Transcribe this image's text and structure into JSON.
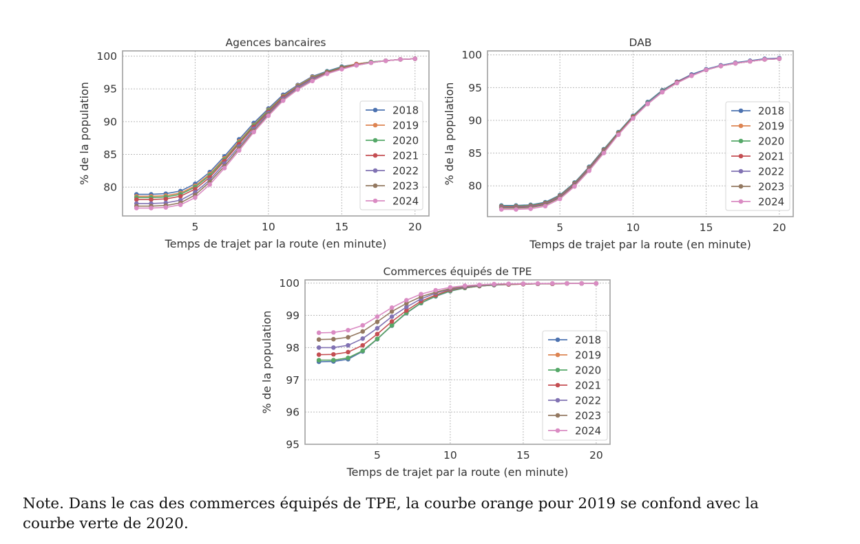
{
  "colors": {
    "2018": "#4C72B0",
    "2019": "#DD8452",
    "2020": "#55A868",
    "2021": "#C44E52",
    "2022": "#8172B3",
    "2023": "#937860",
    "2024": "#DA8BC3",
    "grid": "#b8b8b8",
    "frame": "#a0a0a0"
  },
  "chart_data": [
    {
      "type": "line",
      "title": "Agences bancaires",
      "xlabel": "Temps de trajet par la route (en minute)",
      "ylabel": "% de la population",
      "xlim": [
        0.05,
        20.95
      ],
      "ylim": [
        75.6,
        100.8
      ],
      "xticks": [
        5,
        10,
        15,
        20
      ],
      "yticks": [
        80,
        85,
        90,
        95,
        100
      ],
      "xtick_labels": [
        "5",
        "10",
        "15",
        "20"
      ],
      "ytick_labels": [
        "80",
        "85",
        "90",
        "95",
        "100"
      ],
      "grid": true,
      "legend_position": "center-right",
      "x": [
        1,
        2,
        3,
        4,
        5,
        6,
        7,
        8,
        9,
        10,
        11,
        12,
        13,
        14,
        15,
        16,
        17,
        18,
        19,
        20
      ],
      "series": [
        {
          "name": "2018",
          "values": [
            78.9,
            78.9,
            79.0,
            79.4,
            80.5,
            82.3,
            84.7,
            87.3,
            89.8,
            92.0,
            94.1,
            95.6,
            96.9,
            97.7,
            98.4,
            98.8,
            99.1,
            99.3,
            99.5,
            99.6
          ]
        },
        {
          "name": "2019",
          "values": [
            78.6,
            78.6,
            78.7,
            79.1,
            80.2,
            82.0,
            84.4,
            87.0,
            89.5,
            91.8,
            93.9,
            95.5,
            96.8,
            97.6,
            98.3,
            98.8,
            99.1,
            99.3,
            99.5,
            99.6
          ]
        },
        {
          "name": "2020",
          "values": [
            78.4,
            78.4,
            78.5,
            78.9,
            80.0,
            81.8,
            84.2,
            86.8,
            89.4,
            91.7,
            93.8,
            95.4,
            96.7,
            97.6,
            98.3,
            98.7,
            99.1,
            99.3,
            99.5,
            99.6
          ]
        },
        {
          "name": "2021",
          "values": [
            78.1,
            78.1,
            78.2,
            78.6,
            79.7,
            81.5,
            84.0,
            86.6,
            89.2,
            91.5,
            93.7,
            95.3,
            96.6,
            97.5,
            98.2,
            98.7,
            99.0,
            99.3,
            99.5,
            99.6
          ]
        },
        {
          "name": "2022",
          "values": [
            77.5,
            77.5,
            77.6,
            78.0,
            79.2,
            81.1,
            83.6,
            86.2,
            88.9,
            91.3,
            93.5,
            95.2,
            96.5,
            97.4,
            98.1,
            98.6,
            99.0,
            99.3,
            99.5,
            99.6
          ]
        },
        {
          "name": "2023",
          "values": [
            77.1,
            77.1,
            77.2,
            77.6,
            78.8,
            80.8,
            83.2,
            85.9,
            88.6,
            91.1,
            93.3,
            95.0,
            96.3,
            97.4,
            98.1,
            98.6,
            99.0,
            99.3,
            99.5,
            99.6
          ]
        },
        {
          "name": "2024",
          "values": [
            76.8,
            76.8,
            76.9,
            77.3,
            78.4,
            80.4,
            82.9,
            85.6,
            88.4,
            90.9,
            93.2,
            94.9,
            96.2,
            97.3,
            98.0,
            98.6,
            99.0,
            99.3,
            99.5,
            99.6
          ]
        }
      ]
    },
    {
      "type": "line",
      "title": "DAB",
      "xlabel": "Temps de trajet par la route (en minute)",
      "ylabel": "% de la population",
      "xlim": [
        0.05,
        20.95
      ],
      "ylim": [
        75.3,
        100.6
      ],
      "xticks": [
        5,
        10,
        15,
        20
      ],
      "yticks": [
        80,
        85,
        90,
        95,
        100
      ],
      "xtick_labels": [
        "5",
        "10",
        "15",
        "20"
      ],
      "ytick_labels": [
        "80",
        "85",
        "90",
        "95",
        "100"
      ],
      "grid": true,
      "legend_position": "center-right",
      "x": [
        1,
        2,
        3,
        4,
        5,
        6,
        7,
        8,
        9,
        10,
        11,
        12,
        13,
        14,
        15,
        16,
        17,
        18,
        19,
        20
      ],
      "series": [
        {
          "name": "2018",
          "values": [
            77.0,
            77.0,
            77.1,
            77.5,
            78.6,
            80.5,
            82.9,
            85.6,
            88.2,
            90.7,
            92.8,
            94.6,
            95.9,
            97.0,
            97.8,
            98.4,
            98.8,
            99.1,
            99.4,
            99.5
          ]
        },
        {
          "name": "2019",
          "values": [
            76.9,
            76.9,
            77.0,
            77.4,
            78.5,
            80.4,
            82.8,
            85.5,
            88.1,
            90.6,
            92.7,
            94.5,
            95.8,
            96.9,
            97.7,
            98.3,
            98.7,
            99.0,
            99.3,
            99.4
          ]
        },
        {
          "name": "2020",
          "values": [
            76.9,
            76.9,
            77.0,
            77.4,
            78.5,
            80.4,
            82.8,
            85.5,
            88.1,
            90.6,
            92.7,
            94.5,
            95.8,
            96.9,
            97.7,
            98.3,
            98.7,
            99.0,
            99.3,
            99.4
          ]
        },
        {
          "name": "2021",
          "values": [
            76.8,
            76.8,
            76.9,
            77.3,
            78.4,
            80.3,
            82.7,
            85.4,
            88.0,
            90.5,
            92.6,
            94.4,
            95.8,
            96.9,
            97.7,
            98.3,
            98.7,
            99.0,
            99.3,
            99.4
          ]
        },
        {
          "name": "2022",
          "values": [
            76.7,
            76.7,
            76.8,
            77.2,
            78.3,
            80.2,
            82.6,
            85.3,
            87.9,
            90.4,
            92.6,
            94.4,
            95.7,
            96.9,
            97.7,
            98.3,
            98.7,
            99.0,
            99.3,
            99.4
          ]
        },
        {
          "name": "2023",
          "values": [
            76.6,
            76.6,
            76.7,
            77.1,
            78.2,
            80.1,
            82.5,
            85.2,
            87.9,
            90.4,
            92.5,
            94.3,
            95.7,
            96.8,
            97.7,
            98.3,
            98.7,
            99.0,
            99.3,
            99.4
          ]
        },
        {
          "name": "2024",
          "values": [
            76.4,
            76.4,
            76.5,
            76.9,
            78.0,
            79.9,
            82.3,
            85.0,
            87.8,
            90.3,
            92.5,
            94.3,
            95.7,
            96.8,
            97.7,
            98.3,
            98.7,
            99.0,
            99.3,
            99.4
          ]
        }
      ]
    },
    {
      "type": "line",
      "title": "Commerces équipés de TPE",
      "xlabel": "Temps de trajet par la route (en minute)",
      "ylabel": "% de la population",
      "xlim": [
        0.05,
        20.95
      ],
      "ylim": [
        95.0,
        100.1
      ],
      "xticks": [
        5,
        10,
        15,
        20
      ],
      "yticks": [
        95,
        96,
        97,
        98,
        99,
        100
      ],
      "xtick_labels": [
        "5",
        "10",
        "15",
        "20"
      ],
      "ytick_labels": [
        "95",
        "96",
        "97",
        "98",
        "99",
        "100"
      ],
      "grid": true,
      "legend_position": "lower-right",
      "x": [
        1,
        2,
        3,
        4,
        5,
        6,
        7,
        8,
        9,
        10,
        11,
        12,
        13,
        14,
        15,
        16,
        17,
        18,
        19,
        20
      ],
      "series": [
        {
          "name": "2018",
          "values": [
            97.56,
            97.57,
            97.64,
            97.88,
            98.26,
            98.68,
            99.07,
            99.38,
            99.59,
            99.75,
            99.85,
            99.91,
            99.94,
            99.96,
            99.97,
            99.98,
            99.98,
            99.99,
            99.99,
            99.99
          ]
        },
        {
          "name": "2019",
          "values": [
            97.61,
            97.61,
            97.68,
            97.9,
            98.27,
            98.69,
            99.08,
            99.39,
            99.6,
            99.76,
            99.85,
            99.91,
            99.94,
            99.96,
            99.97,
            99.98,
            99.98,
            99.99,
            99.99,
            99.99
          ]
        },
        {
          "name": "2020",
          "values": [
            97.61,
            97.61,
            97.68,
            97.9,
            98.27,
            98.69,
            99.08,
            99.39,
            99.6,
            99.76,
            99.85,
            99.91,
            99.94,
            99.96,
            99.97,
            99.98,
            99.98,
            99.99,
            99.99,
            99.99
          ]
        },
        {
          "name": "2021",
          "values": [
            97.78,
            97.79,
            97.86,
            98.07,
            98.42,
            98.81,
            99.15,
            99.44,
            99.63,
            99.79,
            99.87,
            99.92,
            99.95,
            99.96,
            99.97,
            99.98,
            99.98,
            99.99,
            99.99,
            99.99
          ]
        },
        {
          "name": "2022",
          "values": [
            98.0,
            98.0,
            98.07,
            98.28,
            98.6,
            98.96,
            99.26,
            99.51,
            99.69,
            99.81,
            99.88,
            99.93,
            99.95,
            99.97,
            99.98,
            99.98,
            99.99,
            99.99,
            99.99,
            99.99
          ]
        },
        {
          "name": "2023",
          "values": [
            98.25,
            98.26,
            98.32,
            98.5,
            98.8,
            99.12,
            99.37,
            99.58,
            99.72,
            99.83,
            99.9,
            99.94,
            99.96,
            99.97,
            99.98,
            99.98,
            99.99,
            99.99,
            99.99,
            99.99
          ]
        },
        {
          "name": "2024",
          "values": [
            98.46,
            98.47,
            98.54,
            98.69,
            98.96,
            99.24,
            99.47,
            99.66,
            99.78,
            99.87,
            99.92,
            99.95,
            99.97,
            99.98,
            99.98,
            99.99,
            99.99,
            99.99,
            99.99,
            99.99
          ]
        }
      ]
    }
  ],
  "note": {
    "line1": "Note. Dans le cas des commerces équipés de TPE, la courbe orange pour 2019 se confond avec la",
    "line2": "courbe verte de 2020."
  }
}
